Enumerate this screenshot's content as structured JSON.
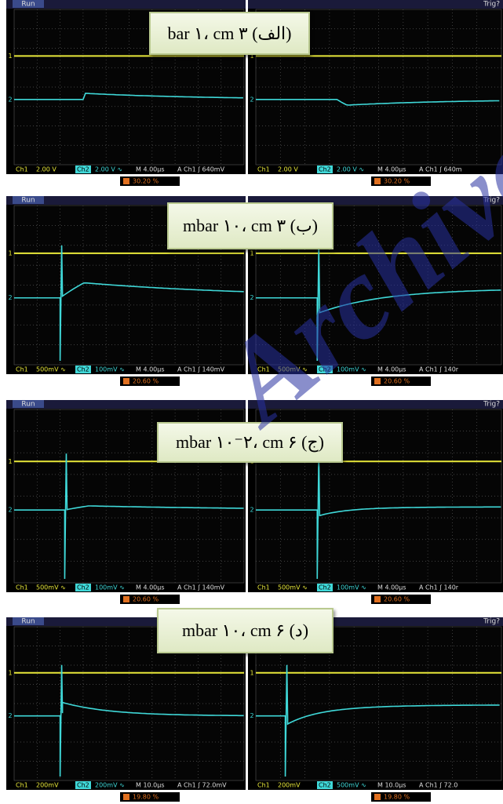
{
  "rows": [
    {
      "label": "(الف) bar ۱، cm ۳",
      "panels": [
        {
          "run": "Run",
          "trig": "",
          "ch1": "Ch1",
          "ch1_scale": "2.00 V",
          "ch2": "Ch2",
          "ch2_scale": "2.00 V ∿",
          "timebase": "M 4.00µs",
          "trigger": "A  Ch1  ʃ  640mV",
          "percent": "30.20 %"
        },
        {
          "run": "",
          "trig": "Trig?",
          "ch1": "Ch1",
          "ch1_scale": "2.00 V",
          "ch2": "Ch2",
          "ch2_scale": "2.00 V ∿",
          "timebase": "M 4.00µs",
          "trigger": "A  Ch1  ʃ  640m",
          "percent": "30.20 %"
        }
      ]
    },
    {
      "label": "(ب) mbar ۱۰، cm ۳",
      "panels": [
        {
          "run": "Run",
          "trig": "",
          "ch1": "Ch1",
          "ch1_scale": "500mV ∿",
          "ch2": "Ch2",
          "ch2_scale": "100mV ∿",
          "timebase": "M 4.00µs",
          "trigger": "A  Ch1  ʃ  140mV",
          "percent": "20.60 %"
        },
        {
          "run": "",
          "trig": "Trig?",
          "ch1": "Ch1",
          "ch1_scale": "500mV ∿",
          "ch2": "Ch2",
          "ch2_scale": "100mV ∿",
          "timebase": "M 4.00µs",
          "trigger": "A  Ch1  ʃ  140r",
          "percent": "20.60 %"
        }
      ]
    },
    {
      "label": "(ج) mbar ۱۰⁻۲، cm ۶",
      "panels": [
        {
          "run": "Run",
          "trig": "",
          "ch1": "Ch1",
          "ch1_scale": "500mV ∿",
          "ch2": "Ch2",
          "ch2_scale": "100mV ∿",
          "timebase": "M 4.00µs",
          "trigger": "A  Ch1  ʃ  140mV",
          "percent": "20.60 %"
        },
        {
          "run": "",
          "trig": "Trig?",
          "ch1": "Ch1",
          "ch1_scale": "500mV ∿",
          "ch2": "Ch2",
          "ch2_scale": "100mV ∿",
          "timebase": "M 4.00µs",
          "trigger": "A  Ch1  ʃ  140r",
          "percent": "20.60 %"
        }
      ]
    },
    {
      "label": "(د) mbar ۱۰، cm ۶",
      "panels": [
        {
          "run": "Run",
          "trig": "Trig?",
          "ch1": "Ch1",
          "ch1_scale": "200mV",
          "ch2": "Ch2",
          "ch2_scale": "200mV ∿",
          "timebase": "M 10.0µs",
          "trigger": "A  Ch1  ʃ  72.0mV",
          "percent": "19.80 %"
        },
        {
          "run": "Run",
          "trig": "Trig?",
          "ch1": "Ch1",
          "ch1_scale": "200mV",
          "ch2": "Ch2",
          "ch2_scale": "500mV ∿",
          "timebase": "M 10.0µs",
          "trigger": "A  Ch1  ʃ  72.0",
          "percent": "19.80 %"
        }
      ]
    }
  ],
  "ch1_marker": "1",
  "ch2_marker": "2",
  "watermark": "Archive"
}
